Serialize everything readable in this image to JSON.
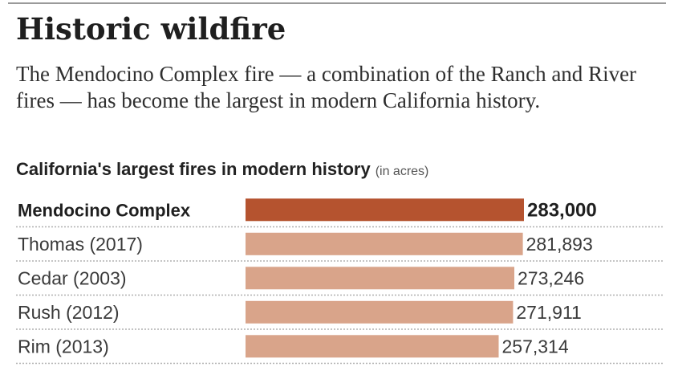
{
  "header": {
    "title": "Historic wildfire",
    "dek": "The Mendocino Complex fire — a combination of the Ranch and River fires — has become the largest in modern California history."
  },
  "chart_data": {
    "type": "bar",
    "orientation": "horizontal",
    "title": "California's largest fires in modern history",
    "unit_note": "(in acres)",
    "categories": [
      "Mendocino Complex",
      "Thomas (2017)",
      "Cedar (2003)",
      "Rush (2012)",
      "Rim (2013)"
    ],
    "values": [
      283000,
      281893,
      273246,
      271911,
      257314
    ],
    "value_labels": [
      "283,000",
      "281,893",
      "273,246",
      "271,911",
      "257,314"
    ],
    "highlight_index": 0,
    "colors": {
      "highlight": "#b5532f",
      "bar": "#d9a48a",
      "rule": "#b0b0b0"
    },
    "grid": false,
    "legend": "none"
  }
}
